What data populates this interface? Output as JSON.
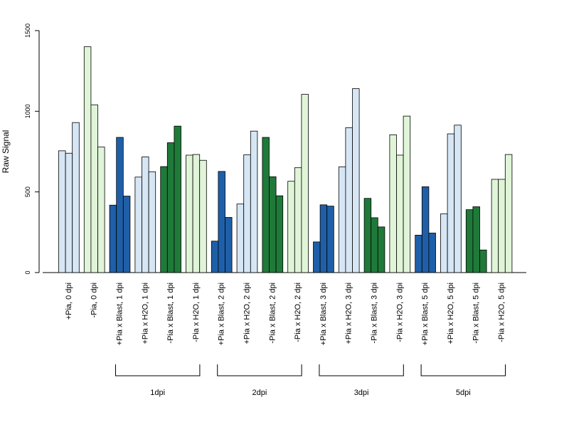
{
  "chart_data": {
    "type": "bar",
    "ylabel": "Raw Signal",
    "xlabel": "",
    "ylim": [
      0,
      1500
    ],
    "yticks": [
      "0",
      "500",
      "1000",
      "1500"
    ],
    "grid": false,
    "legend": "none",
    "colors": {
      "pia_plus_h2o": "#d6e6f5",
      "pia_minus_h2o": "#e0f5d8",
      "pia_plus_blast": "#1f5fa8",
      "pia_minus_blast": "#1f7a3a"
    },
    "categories": [
      "+Pia, 0 dpi",
      "-Pia, 0 dpi",
      "+Pia x Blast, 1 dpi",
      "+Pia x H2O, 1 dpi",
      "-Pia x Blast, 1 dpi",
      "-Pia x H2O, 1 dpi",
      "+Pia x Blast, 2 dpi",
      "+Pia x H2O, 2 dpi",
      "-Pia x Blast, 2 dpi",
      "-Pia x H2O, 2 dpi",
      "+Pia x Blast, 3 dpi",
      "+Pia x H2O, 3 dpi",
      "-Pia x Blast, 3 dpi",
      "-Pia x H2O, 3 dpi",
      "+Pia x Blast, 5 dpi",
      "+Pia x H2O, 5 dpi",
      "-Pia x Blast, 5 dpi",
      "-Pia x H2O, 5 dpi"
    ],
    "group_color_keys": [
      "pia_plus_h2o",
      "pia_minus_h2o",
      "pia_plus_blast",
      "pia_plus_h2o",
      "pia_minus_blast",
      "pia_minus_h2o",
      "pia_plus_blast",
      "pia_plus_h2o",
      "pia_minus_blast",
      "pia_minus_h2o",
      "pia_plus_blast",
      "pia_plus_h2o",
      "pia_minus_blast",
      "pia_minus_h2o",
      "pia_plus_blast",
      "pia_plus_h2o",
      "pia_minus_blast",
      "pia_minus_h2o"
    ],
    "values": [
      [
        755,
        740,
        930
      ],
      [
        1400,
        1040,
        778
      ],
      [
        418,
        838,
        474
      ],
      [
        592,
        717,
        625
      ],
      [
        657,
        805,
        908
      ],
      [
        728,
        732,
        696
      ],
      [
        195,
        627,
        342
      ],
      [
        425,
        730,
        877
      ],
      [
        838,
        594,
        476
      ],
      [
        566,
        650,
        1105
      ],
      [
        190,
        420,
        412
      ],
      [
        655,
        898,
        1140
      ],
      [
        460,
        340,
        283
      ],
      [
        854,
        728,
        970
      ],
      [
        232,
        532,
        245
      ],
      [
        364,
        860,
        914
      ],
      [
        390,
        408,
        140
      ],
      [
        578,
        578,
        732
      ]
    ],
    "time_groups": [
      {
        "label": "1dpi",
        "first": 2,
        "last": 5
      },
      {
        "label": "2dpi",
        "first": 6,
        "last": 9
      },
      {
        "label": "3dpi",
        "first": 10,
        "last": 13
      },
      {
        "label": "5dpi",
        "first": 14,
        "last": 17
      }
    ]
  }
}
